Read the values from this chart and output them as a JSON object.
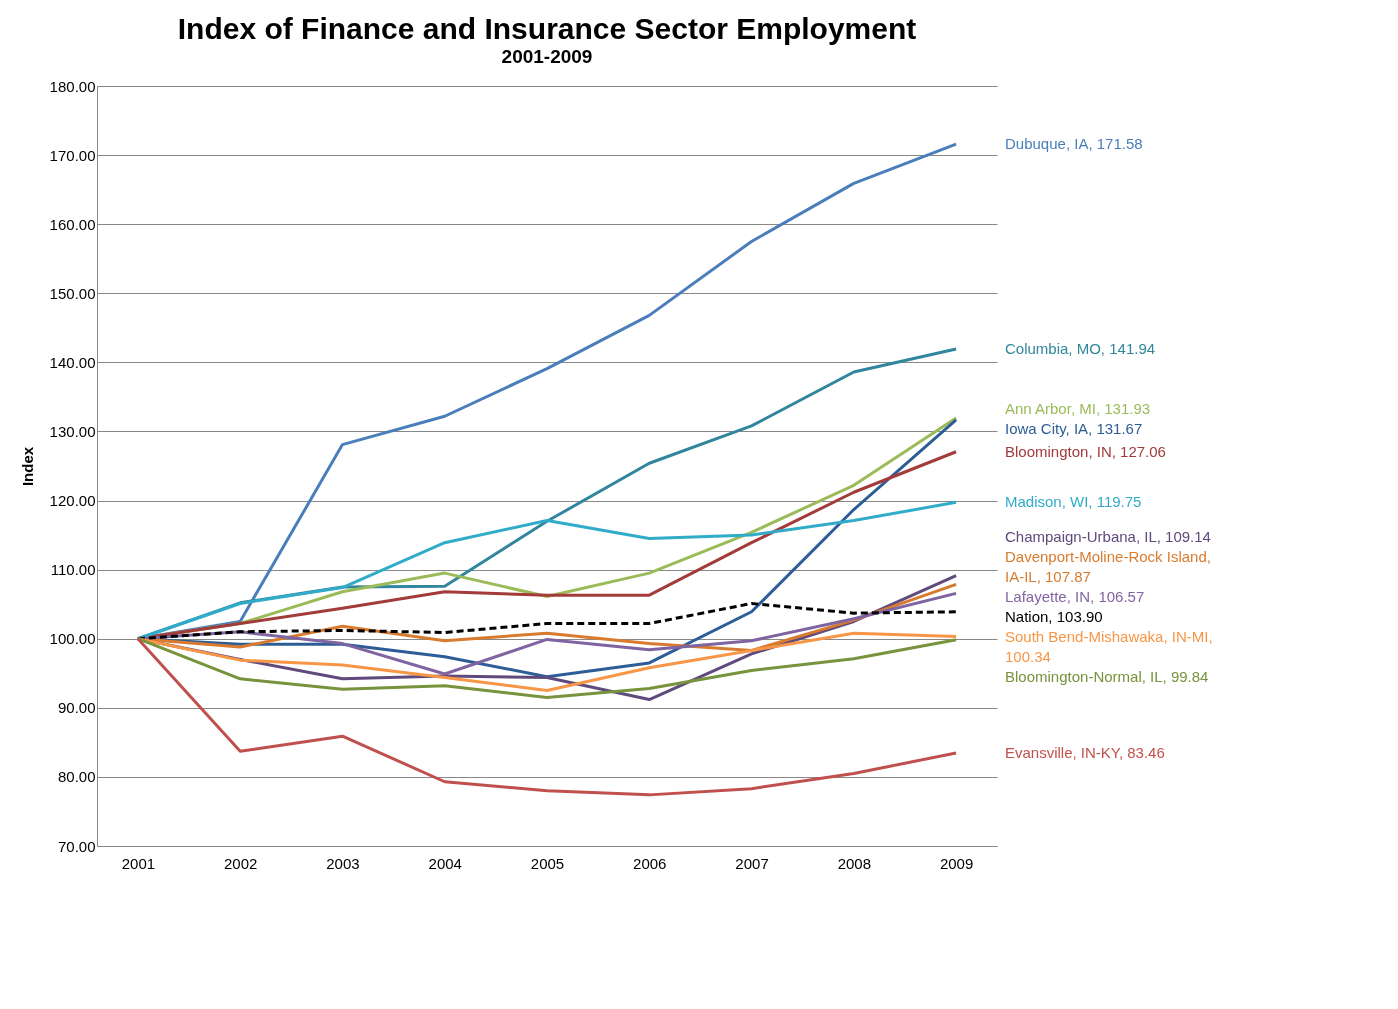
{
  "chart_data": {
    "type": "line",
    "title": "Index of Finance and Insurance Sector Employment",
    "subtitle": "2001-2009",
    "ylabel": "Index",
    "categories": [
      "2001",
      "2002",
      "2003",
      "2004",
      "2005",
      "2006",
      "2007",
      "2008",
      "2009"
    ],
    "ylim": [
      70,
      180
    ],
    "yticks": [
      {
        "value": 70,
        "label": "70.00"
      },
      {
        "value": 80,
        "label": "80.00"
      },
      {
        "value": 90,
        "label": "90.00"
      },
      {
        "value": 100,
        "label": "100.00"
      },
      {
        "value": 110,
        "label": "110.00"
      },
      {
        "value": 120,
        "label": "120.00"
      },
      {
        "value": 130,
        "label": "130.00"
      },
      {
        "value": 140,
        "label": "140.00"
      },
      {
        "value": 150,
        "label": "150.00"
      },
      {
        "value": 160,
        "label": "160.00"
      },
      {
        "value": 170,
        "label": "170.00"
      },
      {
        "value": 180,
        "label": "180.00"
      }
    ],
    "grid": "y",
    "legend": false,
    "marker": "none",
    "series": [
      {
        "name": "Dubuque, IA, 171.58",
        "color": "#4a7ebb",
        "values": [
          100,
          102.5,
          128.1,
          132.2,
          139.1,
          146.8,
          157.5,
          165.9,
          171.58
        ]
      },
      {
        "name": "Columbia, MO, 141.94",
        "color": "#31859c",
        "values": [
          100,
          105.2,
          107.5,
          107.6,
          117.0,
          125.4,
          130.8,
          138.6,
          141.94
        ]
      },
      {
        "name": "Ann Arbor, MI, 131.93",
        "color": "#9bbb59",
        "values": [
          100,
          102.2,
          106.8,
          109.5,
          106.1,
          109.5,
          115.4,
          122.2,
          131.93
        ]
      },
      {
        "name": "Iowa City, IA, 131.67",
        "color": "#2c5d96",
        "values": [
          100,
          99.2,
          99.2,
          97.4,
          94.5,
          96.5,
          103.9,
          118.7,
          131.67
        ]
      },
      {
        "name": "Bloomington, IN, 127.06",
        "color": "#a33b3b",
        "values": [
          100,
          102.2,
          104.4,
          106.8,
          106.3,
          106.3,
          113.9,
          121.2,
          127.06
        ]
      },
      {
        "name": "Madison, WI, 119.75",
        "color": "#31acc8",
        "values": [
          100,
          105.1,
          107.4,
          113.9,
          117.1,
          114.5,
          115.0,
          117.1,
          119.75
        ]
      },
      {
        "name": "Champaign-Urbana, IL, 109.14",
        "color": "#604a7b",
        "values": [
          100,
          97.0,
          94.2,
          94.6,
          94.4,
          91.2,
          97.8,
          102.5,
          109.14
        ]
      },
      {
        "name": "Davenport-Moline-Rock Island, IA-IL, 107.87",
        "color": "#d97b2e",
        "values": [
          100,
          98.8,
          101.8,
          99.7,
          100.8,
          99.3,
          98.3,
          102.7,
          107.87
        ]
      },
      {
        "name": "Lafayette, IN, 106.57",
        "color": "#8064a2",
        "values": [
          100,
          101.0,
          99.3,
          94.9,
          99.9,
          98.4,
          99.7,
          102.9,
          106.57
        ]
      },
      {
        "name": "Nation, 103.90",
        "color": "#000000",
        "line_style": "dashed",
        "values": [
          100,
          101.0,
          101.2,
          100.9,
          102.2,
          102.2,
          105.1,
          103.7,
          103.9
        ]
      },
      {
        "name": "South Bend-Mishawaka, IN-MI, 100.34",
        "color": "#f79646",
        "values": [
          100,
          96.9,
          96.2,
          94.4,
          92.5,
          95.8,
          98.3,
          100.8,
          100.34
        ]
      },
      {
        "name": "Bloomington-Normal, IL, 99.84",
        "color": "#77933c",
        "values": [
          100,
          94.2,
          92.7,
          93.2,
          91.5,
          92.8,
          95.4,
          97.1,
          99.84
        ]
      },
      {
        "name": "Evansville, IN-KY, 83.46",
        "color": "#c0504d",
        "values": [
          100,
          83.7,
          85.9,
          79.3,
          78.0,
          77.4,
          78.3,
          80.5,
          83.46
        ]
      }
    ]
  }
}
